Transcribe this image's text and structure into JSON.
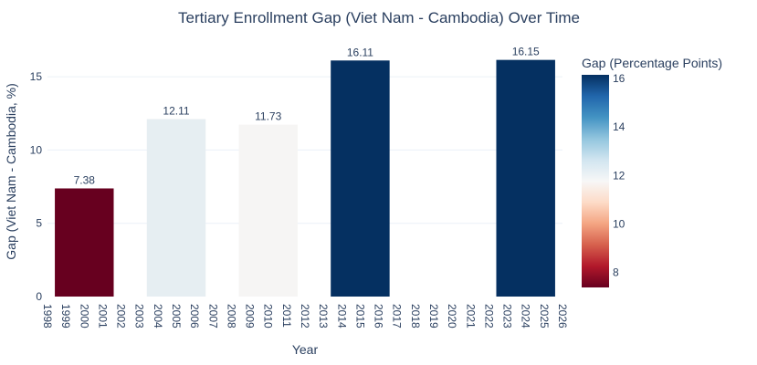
{
  "chart_data": {
    "type": "bar",
    "title": "Tertiary Enrollment Gap (Viet Nam - Cambodia) Over Time",
    "xlabel": "Year",
    "ylabel": "Gap (Viet Nam - Cambodia, %)",
    "ylim": [
      0,
      17
    ],
    "yticks": [
      0,
      5,
      10,
      15
    ],
    "xlim": [
      1998,
      2026
    ],
    "xticks": [
      1998,
      1999,
      2000,
      2001,
      2002,
      2003,
      2004,
      2005,
      2006,
      2007,
      2008,
      2009,
      2010,
      2011,
      2012,
      2013,
      2014,
      2015,
      2016,
      2017,
      2018,
      2019,
      2020,
      2021,
      2022,
      2023,
      2024,
      2025,
      2026
    ],
    "grid": true,
    "x": [
      2000,
      2005,
      2010,
      2015,
      2024
    ],
    "values": [
      7.38,
      12.11,
      11.73,
      16.11,
      16.15
    ],
    "bar_width_years": 3.2,
    "colorscale": {
      "name": "RdBu",
      "title": "Gap (Percentage Points)",
      "range": [
        7.38,
        16.15
      ],
      "ticks": [
        8,
        10,
        12,
        14,
        16
      ]
    },
    "bar_colors": [
      "#67001f",
      "#e6eef2",
      "#f6f5f4",
      "#053061",
      "#053061"
    ]
  }
}
